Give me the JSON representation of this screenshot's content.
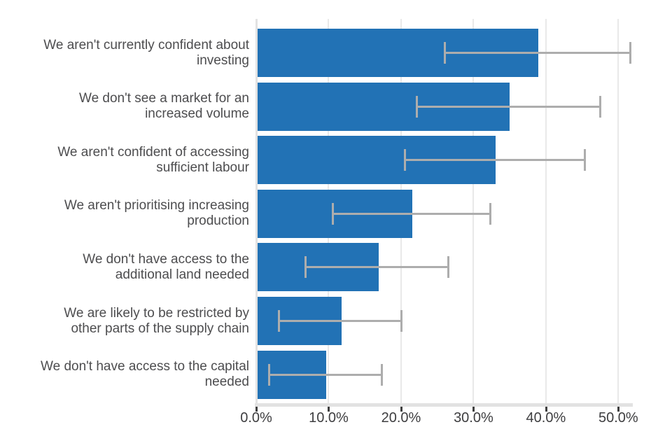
{
  "chart_data": {
    "type": "bar",
    "orientation": "horizontal",
    "title": "",
    "xlabel": "",
    "ylabel": "",
    "categories": [
      "We aren't currently confident about\ninvesting",
      "We don't see a market for an\nincreased volume",
      "We aren't confident of accessing\nsufficient labour",
      "We aren't prioritising increasing\nproduction",
      "We don't have access to the\nadditional land needed",
      "We are likely to be restricted by\nother parts of the supply chain",
      "We don't have access to the capital\nneeded"
    ],
    "values": [
      38.8,
      34.8,
      32.9,
      21.4,
      16.7,
      11.6,
      9.5
    ],
    "error_low": [
      26.0,
      22.2,
      20.5,
      10.6,
      6.8,
      3.1,
      1.8
    ],
    "error_high": [
      51.7,
      47.5,
      45.4,
      32.3,
      26.5,
      20.1,
      17.3
    ],
    "value_unit": "%",
    "x_tick_values": [
      0,
      10,
      20,
      30,
      40,
      50
    ],
    "x_tick_labels": [
      "0.0%",
      "10.0%",
      "20.0%",
      "30.0%",
      "40.0%",
      "50.0%"
    ],
    "xlim": [
      0,
      51.8
    ],
    "grid": "vertical-only",
    "legend": "none",
    "colors": {
      "bar": "#2272b5",
      "error_bar": "#adadad",
      "gridline": "#e9e9e9",
      "axis_line": "#e2e2e2",
      "tick_mark": "#3f3f3f",
      "tick_label_text": "#3e3e40",
      "category_label_text": "#4d4d4f",
      "background": "#ffffff"
    }
  }
}
